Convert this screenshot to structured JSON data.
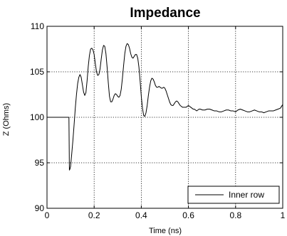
{
  "chart_data": {
    "type": "line",
    "title": "Impedance",
    "xlabel": "Time (ns)",
    "ylabel": "Z (Ohms)",
    "xlim": [
      0,
      1
    ],
    "ylim": [
      90,
      110
    ],
    "xticks": [
      0,
      0.2,
      0.4,
      0.6,
      0.8,
      1
    ],
    "xtick_labels": [
      "0",
      "0.2",
      "0.4",
      "0.6",
      "0.8",
      "1"
    ],
    "yticks": [
      90,
      95,
      100,
      105,
      110
    ],
    "ytick_labels": [
      "90",
      "95",
      "100",
      "105",
      "110"
    ],
    "grid": true,
    "legend_position": "bottom-right",
    "series": [
      {
        "name": "Inner row",
        "color": "#000000",
        "x": [
          0,
          0.093,
          0.095,
          0.097,
          0.1,
          0.105,
          0.11,
          0.115,
          0.12,
          0.125,
          0.13,
          0.135,
          0.14,
          0.145,
          0.15,
          0.155,
          0.16,
          0.165,
          0.17,
          0.175,
          0.18,
          0.185,
          0.19,
          0.195,
          0.2,
          0.205,
          0.21,
          0.215,
          0.22,
          0.225,
          0.23,
          0.235,
          0.24,
          0.245,
          0.25,
          0.255,
          0.26,
          0.265,
          0.27,
          0.275,
          0.28,
          0.285,
          0.29,
          0.295,
          0.3,
          0.305,
          0.31,
          0.315,
          0.32,
          0.325,
          0.33,
          0.335,
          0.34,
          0.345,
          0.35,
          0.355,
          0.36,
          0.365,
          0.37,
          0.375,
          0.38,
          0.385,
          0.39,
          0.395,
          0.4,
          0.405,
          0.41,
          0.415,
          0.42,
          0.425,
          0.43,
          0.435,
          0.44,
          0.445,
          0.45,
          0.455,
          0.46,
          0.465,
          0.47,
          0.475,
          0.48,
          0.485,
          0.49,
          0.495,
          0.5,
          0.505,
          0.51,
          0.515,
          0.52,
          0.525,
          0.53,
          0.535,
          0.54,
          0.545,
          0.55,
          0.555,
          0.56,
          0.565,
          0.57,
          0.575,
          0.58,
          0.585,
          0.59,
          0.595,
          0.6,
          0.605,
          0.61,
          0.615,
          0.62,
          0.625,
          0.63,
          0.635,
          0.64,
          0.645,
          0.65,
          0.66,
          0.67,
          0.68,
          0.69,
          0.7,
          0.71,
          0.72,
          0.73,
          0.74,
          0.75,
          0.76,
          0.77,
          0.78,
          0.79,
          0.8,
          0.81,
          0.82,
          0.83,
          0.84,
          0.85,
          0.86,
          0.87,
          0.88,
          0.89,
          0.9,
          0.91,
          0.92,
          0.93,
          0.94,
          0.95,
          0.96,
          0.97,
          0.98,
          0.99,
          1.0
        ],
        "y": [
          100,
          100,
          94.2,
          94.3,
          94.6,
          96.0,
          97.5,
          99.2,
          101.0,
          102.5,
          103.7,
          104.4,
          104.7,
          104.4,
          103.6,
          102.8,
          102.4,
          102.7,
          104.0,
          105.6,
          106.8,
          107.5,
          107.6,
          107.4,
          106.9,
          105.9,
          105.0,
          104.6,
          104.7,
          105.3,
          106.4,
          107.4,
          107.9,
          107.8,
          107.0,
          105.5,
          103.8,
          102.3,
          101.7,
          101.7,
          102.0,
          102.4,
          102.6,
          102.5,
          102.3,
          102.2,
          102.4,
          103.1,
          104.3,
          105.7,
          107.0,
          107.8,
          108.1,
          108.0,
          107.6,
          107.0,
          106.6,
          106.5,
          106.7,
          106.9,
          106.9,
          106.5,
          105.5,
          104.0,
          102.3,
          101.0,
          100.2,
          100.1,
          100.5,
          101.3,
          102.4,
          103.3,
          104.0,
          104.3,
          104.2,
          103.9,
          103.5,
          103.3,
          103.3,
          103.4,
          103.3,
          103.2,
          103.2,
          103.3,
          103.2,
          102.9,
          102.5,
          102.1,
          101.7,
          101.4,
          101.3,
          101.3,
          101.5,
          101.7,
          101.8,
          101.7,
          101.5,
          101.3,
          101.2,
          101.1,
          101.1,
          101.1,
          101.1,
          101.2,
          101.3,
          101.2,
          101.1,
          101.0,
          100.9,
          100.9,
          100.8,
          100.7,
          100.8,
          100.9,
          100.9,
          100.8,
          100.8,
          100.9,
          100.9,
          100.8,
          100.7,
          100.7,
          100.6,
          100.6,
          100.7,
          100.8,
          100.8,
          100.7,
          100.7,
          100.6,
          100.8,
          100.9,
          100.8,
          100.7,
          100.6,
          100.6,
          100.7,
          100.8,
          100.7,
          100.6,
          100.6,
          100.5,
          100.6,
          100.7,
          100.7,
          100.7,
          100.8,
          100.9,
          101.0,
          101.4
        ]
      }
    ]
  }
}
